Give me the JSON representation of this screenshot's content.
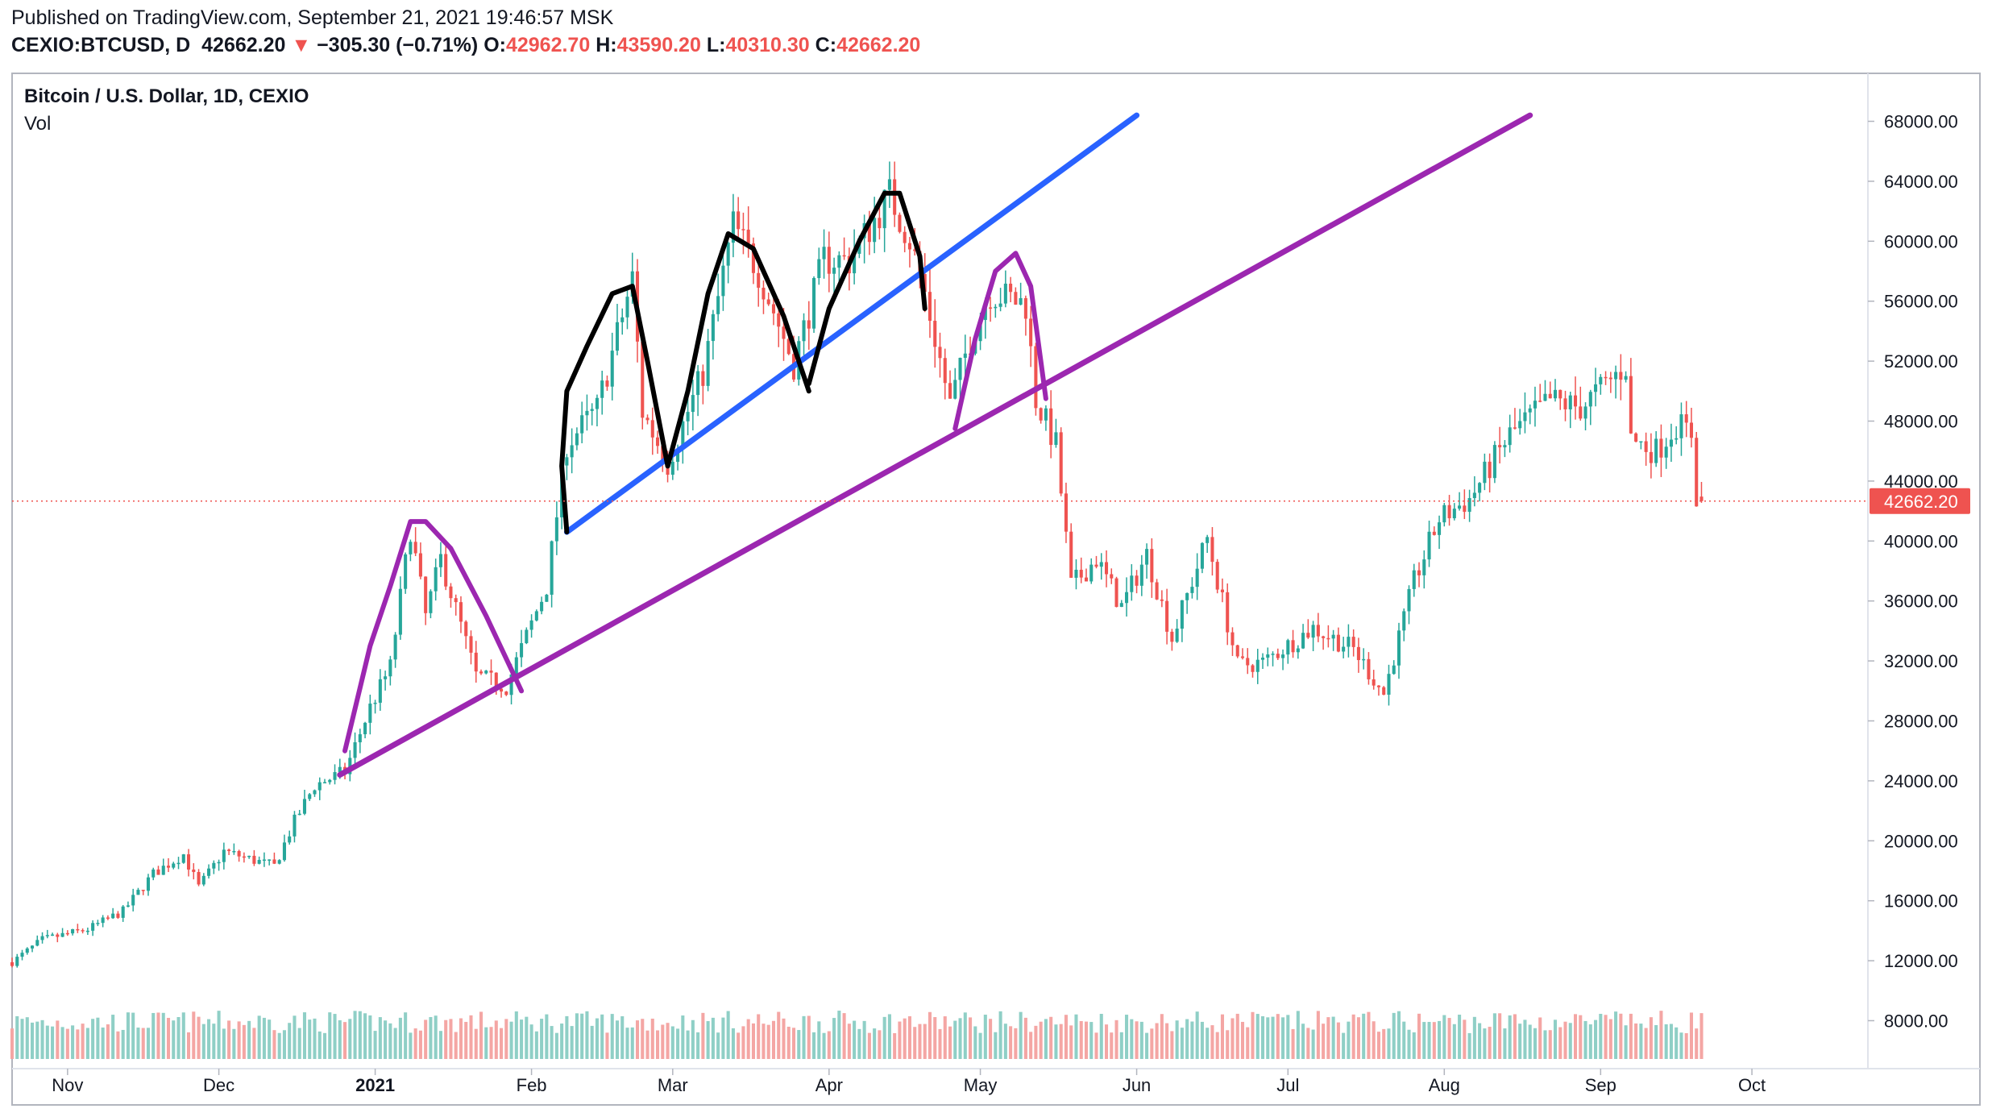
{
  "header": {
    "published": "Published on TradingView.com, September 21, 2021 19:46:57 MSK",
    "symbol": "CEXIO:BTCUSD, D",
    "last": "42662.20",
    "arrow": "▼",
    "change": "−305.30 (−0.71%)",
    "o_label": "O:",
    "o": "42962.70",
    "h_label": "H:",
    "h": "43590.20",
    "l_label": "L:",
    "l": "40310.30",
    "c_label": "C:",
    "c": "42662.20"
  },
  "pane": {
    "title": "Bitcoin / U.S. Dollar, 1D, CEXIO",
    "volume_label": "Vol"
  },
  "colors": {
    "up": "#26a69a",
    "down": "#ef5350",
    "vol_up": "#8fcfc6",
    "vol_down": "#f4a6a4",
    "blue_line": "#2962ff",
    "purple_line": "#9c27b0",
    "black_line": "#000000"
  },
  "chart_data": {
    "type": "candlestick",
    "title": "Bitcoin / U.S. Dollar, 1D, CEXIO",
    "y_axis_ticks": [
      "68000.00",
      "64000.00",
      "60000.00",
      "56000.00",
      "52000.00",
      "48000.00",
      "44000.00",
      "40000.00",
      "36000.00",
      "32000.00",
      "28000.00",
      "24000.00",
      "20000.00",
      "16000.00",
      "12000.00",
      "8000.00"
    ],
    "y_axis_tick_values": [
      68000,
      64000,
      60000,
      56000,
      52000,
      48000,
      44000,
      40000,
      36000,
      32000,
      28000,
      24000,
      20000,
      16000,
      12000,
      8000
    ],
    "x_axis_ticks": [
      {
        "label": "Nov",
        "date": "2020-11-01"
      },
      {
        "label": "Dec",
        "date": "2020-12-01"
      },
      {
        "label": "2021",
        "date": "2021-01-01",
        "bold": true
      },
      {
        "label": "Feb",
        "date": "2021-02-01"
      },
      {
        "label": "Mar",
        "date": "2021-03-01"
      },
      {
        "label": "Apr",
        "date": "2021-04-01"
      },
      {
        "label": "May",
        "date": "2021-05-01"
      },
      {
        "label": "Jun",
        "date": "2021-06-01"
      },
      {
        "label": "Jul",
        "date": "2021-07-01"
      },
      {
        "label": "Aug",
        "date": "2021-08-01"
      },
      {
        "label": "Sep",
        "date": "2021-09-01"
      },
      {
        "label": "Oct",
        "date": "2021-10-01"
      }
    ],
    "x_range": [
      "2020-10-21",
      "2021-10-24"
    ],
    "ylim": [
      4800,
      71200
    ],
    "last_price": 42662.2,
    "last_price_label": "42662.20",
    "close_anchors": [
      [
        "2020-10-21",
        11900
      ],
      [
        "2020-10-27",
        13400
      ],
      [
        "2020-11-05",
        14100
      ],
      [
        "2020-11-12",
        15300
      ],
      [
        "2020-11-18",
        17800
      ],
      [
        "2020-11-24",
        19100
      ],
      [
        "2020-11-27",
        16900
      ],
      [
        "2020-12-02",
        19300
      ],
      [
        "2020-12-12",
        18300
      ],
      [
        "2020-12-16",
        21300
      ],
      [
        "2020-12-20",
        23700
      ],
      [
        "2020-12-26",
        24600
      ],
      [
        "2020-12-31",
        28900
      ],
      [
        "2021-01-04",
        31600
      ],
      [
        "2021-01-08",
        40800
      ],
      [
        "2021-01-11",
        35000
      ],
      [
        "2021-01-14",
        38800
      ],
      [
        "2021-01-21",
        31000
      ],
      [
        "2021-01-27",
        30300
      ],
      [
        "2021-02-04",
        37000
      ],
      [
        "2021-02-08",
        46500
      ],
      [
        "2021-02-14",
        48800
      ],
      [
        "2021-02-21",
        57500
      ],
      [
        "2021-02-23",
        48600
      ],
      [
        "2021-02-28",
        45200
      ],
      [
        "2021-03-07",
        51200
      ],
      [
        "2021-03-13",
        61100
      ],
      [
        "2021-03-18",
        58000
      ],
      [
        "2021-03-25",
        51800
      ],
      [
        "2021-03-31",
        58800
      ],
      [
        "2021-04-05",
        58700
      ],
      [
        "2021-04-13",
        63100
      ],
      [
        "2021-04-17",
        60100
      ],
      [
        "2021-04-20",
        56500
      ],
      [
        "2021-04-25",
        49100
      ],
      [
        "2021-04-29",
        53500
      ],
      [
        "2021-05-03",
        56600
      ],
      [
        "2021-05-10",
        55800
      ],
      [
        "2021-05-12",
        49400
      ],
      [
        "2021-05-16",
        46400
      ],
      [
        "2021-05-19",
        37000
      ],
      [
        "2021-05-24",
        38800
      ],
      [
        "2021-05-29",
        35600
      ],
      [
        "2021-06-03",
        39100
      ],
      [
        "2021-06-08",
        33500
      ],
      [
        "2021-06-15",
        40200
      ],
      [
        "2021-06-21",
        31700
      ],
      [
        "2021-06-26",
        31900
      ],
      [
        "2021-07-06",
        34200
      ],
      [
        "2021-07-14",
        32800
      ],
      [
        "2021-07-20",
        29800
      ],
      [
        "2021-07-26",
        37300
      ],
      [
        "2021-07-31",
        41500
      ],
      [
        "2021-08-06",
        42800
      ],
      [
        "2021-08-14",
        47100
      ],
      [
        "2021-08-22",
        49400
      ],
      [
        "2021-08-28",
        48900
      ],
      [
        "2021-09-06",
        51700
      ],
      [
        "2021-09-07",
        46800
      ],
      [
        "2021-09-12",
        46000
      ],
      [
        "2021-09-16",
        47800
      ],
      [
        "2021-09-19",
        47200
      ],
      [
        "2021-09-20",
        42970
      ],
      [
        "2021-09-21",
        42662.2
      ]
    ],
    "series": [
      {
        "name": "Vol",
        "type": "volume",
        "note": "volume bars at bottom of the same pane"
      }
    ]
  },
  "drawings": [
    {
      "name": "blue-trendline",
      "color": "#2962ff",
      "points": [
        [
          "2021-02-08",
          40600
        ],
        [
          "2021-06-01",
          68400
        ]
      ]
    },
    {
      "name": "purple-trendline",
      "color": "#9c27b0",
      "points": [
        [
          "2020-12-25",
          24400
        ],
        [
          "2021-08-18",
          68400
        ]
      ]
    }
  ]
}
